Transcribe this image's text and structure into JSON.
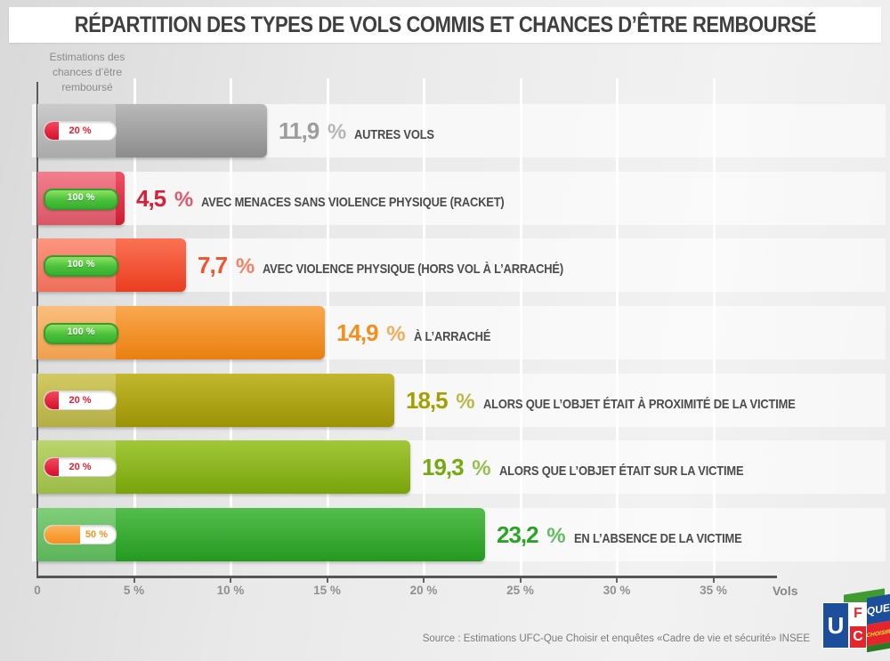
{
  "title": "RÉPARTITION DES TYPES DE VOLS COMMIS ET CHANCES D’ÊTRE REMBOURSÉ",
  "y_axis_label": "Estimations des\nchances d’être\nremboursé",
  "x_axis": {
    "tick_labels": [
      "0",
      "5 %",
      "10 %",
      "15 %",
      "20 %",
      "25 %",
      "30 %",
      "35 %"
    ],
    "unit_label": "Vols"
  },
  "source_text": "Source : Estimations UFC-Que Choisir et enquêtes «Cadre de vie et sécurité» INSEE",
  "logo": {
    "u": "U",
    "f": "F",
    "c": "C",
    "que": "QUE",
    "choisir": "CHOISIR"
  },
  "chart_data": {
    "type": "bar",
    "orientation": "horizontal",
    "title": "Répartition des types de vols commis et chances d’être remboursé",
    "xlabel": "Vols",
    "ylabel": "Estimations des chances d’être remboursé",
    "xlim": [
      0,
      38.2
    ],
    "x_ticks_percent": [
      0,
      5,
      10,
      15,
      20,
      25,
      30,
      35
    ],
    "grid": "vertical-white",
    "value_suffix": "%",
    "bars": [
      {
        "label": "AUTRES VOLS",
        "value": 11.9,
        "value_display": "11,9",
        "reimbursement": {
          "display": "20 %",
          "pct": 20,
          "style": "red"
        },
        "bar_gradient": [
          "#b9b9b9",
          "#8c8c8c"
        ],
        "value_color": "#9d9d9d"
      },
      {
        "label": "AVEC MENACES SANS VIOLENCE PHYSIQUE (RACKET)",
        "value": 4.5,
        "value_display": "4,5",
        "reimbursement": {
          "display": "100 %",
          "pct": 100,
          "style": "green"
        },
        "bar_gradient": [
          "#ef5264",
          "#cd1d31"
        ],
        "value_color": "#d6203a"
      },
      {
        "label": "AVEC VIOLENCE PHYSIQUE (HORS VOL À L’ARRACHÉ)",
        "value": 7.7,
        "value_display": "7,7",
        "reimbursement": {
          "display": "100 %",
          "pct": 100,
          "style": "green"
        },
        "bar_gradient": [
          "#fb7254",
          "#e93d20"
        ],
        "value_color": "#f2552d"
      },
      {
        "label": "À L’ARRACHÉ",
        "value": 14.9,
        "value_display": "14,9",
        "reimbursement": {
          "display": "100 %",
          "pct": 100,
          "style": "green"
        },
        "bar_gradient": [
          "#f9a850",
          "#ea7f0f"
        ],
        "value_color": "#f1901c"
      },
      {
        "label": "ALORS QUE L’OBJET ÉTAIT À PROXIMITÉ DE LA VICTIME",
        "value": 18.5,
        "value_display": "18,5",
        "reimbursement": {
          "display": "20 %",
          "pct": 20,
          "style": "red"
        },
        "bar_gradient": [
          "#c2b82e",
          "#9c9205"
        ],
        "value_color": "#a3a004"
      },
      {
        "label": "ALORS QUE L’OBJET ÉTAIT SUR LA VICTIME",
        "value": 19.3,
        "value_display": "19,3",
        "reimbursement": {
          "display": "20 %",
          "pct": 20,
          "style": "red"
        },
        "bar_gradient": [
          "#a2c839",
          "#78a309"
        ],
        "value_color": "#74aa10"
      },
      {
        "label": "EN L’ABSENCE DE LA VICTIME",
        "value": 23.2,
        "value_display": "23,2",
        "reimbursement": {
          "display": "50 %",
          "pct": 50,
          "style": "orange"
        },
        "bar_gradient": [
          "#54bd4c",
          "#239a1f"
        ],
        "value_color": "#2da428"
      }
    ]
  }
}
